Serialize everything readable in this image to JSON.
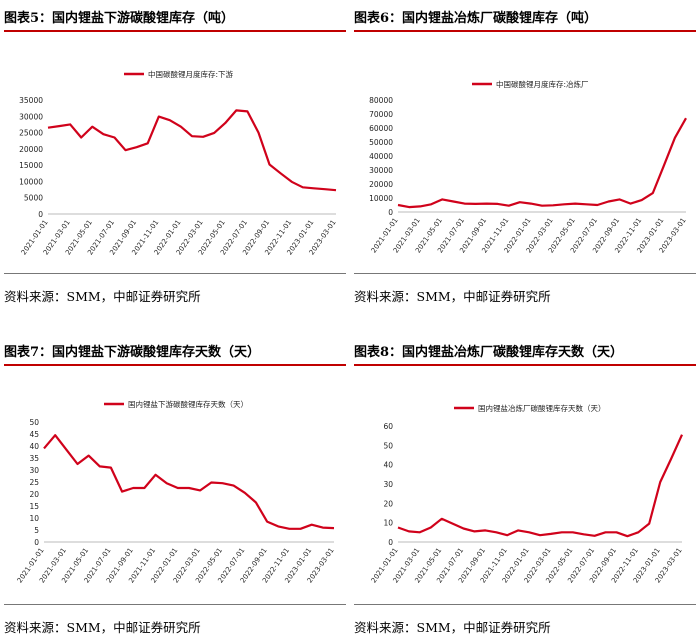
{
  "source_label": "资料来源：SMM，中邮证券研究所",
  "charts": [
    {
      "fig_title": "图表5：国内锂盐下游碳酸锂库存（吨）",
      "legend": "中国碳酸锂月度库存:下游",
      "ylim": [
        0,
        35000
      ],
      "yticks": [
        0,
        5000,
        10000,
        15000,
        20000,
        25000,
        30000,
        35000
      ],
      "xticks": [
        "2021-01-01",
        "2021-03-01",
        "2021-05-01",
        "2021-07-01",
        "2021-09-01",
        "2021-11-01",
        "2022-01-01",
        "2022-03-01",
        "2022-05-01",
        "2022-07-01",
        "2022-09-01",
        "2022-11-01",
        "2023-01-01",
        "2023-03-01"
      ],
      "values": [
        26500,
        27000,
        27500,
        23500,
        26800,
        24500,
        23500,
        19600,
        20500,
        21700,
        29900,
        28800,
        26800,
        23900,
        23700,
        24900,
        27900,
        31800,
        31500,
        25000,
        15200,
        12500,
        9900,
        8200,
        7900,
        7600,
        7300
      ],
      "color": "#d0021b"
    },
    {
      "fig_title": "图表6：国内锂盐冶炼厂碳酸锂库存（吨）",
      "legend": "中国碳酸锂月度库存:冶炼厂",
      "ylim": [
        0,
        80000
      ],
      "yticks": [
        0,
        10000,
        20000,
        30000,
        40000,
        50000,
        60000,
        70000,
        80000
      ],
      "xticks": [
        "2021-01-01",
        "2021-03-01",
        "2021-05-01",
        "2021-07-01",
        "2021-09-01",
        "2021-11-01",
        "2022-01-01",
        "2022-03-01",
        "2022-05-01",
        "2022-07-01",
        "2022-09-01",
        "2022-11-01",
        "2023-01-01",
        "2023-03-01"
      ],
      "values": [
        5000,
        3500,
        4000,
        5500,
        9000,
        7500,
        6000,
        5800,
        6000,
        5800,
        4500,
        7000,
        6000,
        4500,
        4800,
        5500,
        6000,
        5500,
        5000,
        7500,
        9000,
        6000,
        8500,
        13500,
        33000,
        53000,
        67000
      ],
      "color": "#d0021b"
    },
    {
      "fig_title": "图表7：国内锂盐下游碳酸锂库存天数（天）",
      "legend": "国内锂盐下游碳酸锂库存天数（天）",
      "ylim": [
        0,
        50
      ],
      "yticks": [
        0,
        5,
        10,
        15,
        20,
        25,
        30,
        35,
        40,
        45,
        50
      ],
      "xticks": [
        "2021-01-01",
        "2021-03-01",
        "2021-05-01",
        "2021-07-01",
        "2021-09-01",
        "2021-11-01",
        "2022-01-01",
        "2022-03-01",
        "2022-05-01",
        "2022-07-01",
        "2022-09-01",
        "2022-11-01",
        "2023-01-01",
        "2023-03-01"
      ],
      "values": [
        39,
        44.5,
        38.5,
        32.5,
        36,
        31.5,
        31,
        21,
        22.5,
        22.5,
        28,
        24.5,
        22.5,
        22.5,
        21.5,
        24.8,
        24.5,
        23.5,
        20.5,
        16.5,
        8.5,
        6.5,
        5.5,
        5.5,
        7.2,
        6,
        5.8
      ],
      "color": "#d0021b"
    },
    {
      "fig_title": "图表8：国内锂盐冶炼厂碳酸锂库存天数（天）",
      "legend": "国内锂盐冶炼厂碳酸锂库存天数（天）",
      "ylim": [
        0,
        60
      ],
      "yticks": [
        0,
        10,
        20,
        30,
        40,
        50,
        60
      ],
      "xticks": [
        "2021-01-01",
        "2021-03-01",
        "2021-05-01",
        "2021-07-01",
        "2021-09-01",
        "2021-11-01",
        "2022-01-01",
        "2022-03-01",
        "2022-05-01",
        "2022-07-01",
        "2022-09-01",
        "2022-11-01",
        "2023-01-01",
        "2023-03-01"
      ],
      "values": [
        7.5,
        5.5,
        5,
        7.5,
        12,
        9.5,
        7,
        5.5,
        6,
        5,
        3.5,
        6,
        5,
        3.5,
        4.2,
        5,
        5,
        4,
        3.2,
        5,
        5,
        3,
        5,
        9.5,
        31,
        43,
        55.5
      ],
      "color": "#d0021b"
    }
  ],
  "chart_data": [
    {
      "type": "line",
      "title": "图表5：国内锂盐下游碳酸锂库存（吨）",
      "series": [
        {
          "name": "中国碳酸锂月度库存:下游"
        }
      ]
    },
    {
      "type": "line",
      "title": "图表6：国内锂盐冶炼厂碳酸锂库存（吨）",
      "series": [
        {
          "name": "中国碳酸锂月度库存:冶炼厂"
        }
      ]
    },
    {
      "type": "line",
      "title": "图表7：国内锂盐下游碳酸锂库存天数（天）",
      "series": [
        {
          "name": "国内锂盐下游碳酸锂库存天数（天）"
        }
      ]
    },
    {
      "type": "line",
      "title": "图表8：国内锂盐冶炼厂碳酸锂库存天数（天）",
      "series": [
        {
          "name": "国内锂盐冶炼厂碳酸锂库存天数（天）"
        }
      ]
    }
  ]
}
